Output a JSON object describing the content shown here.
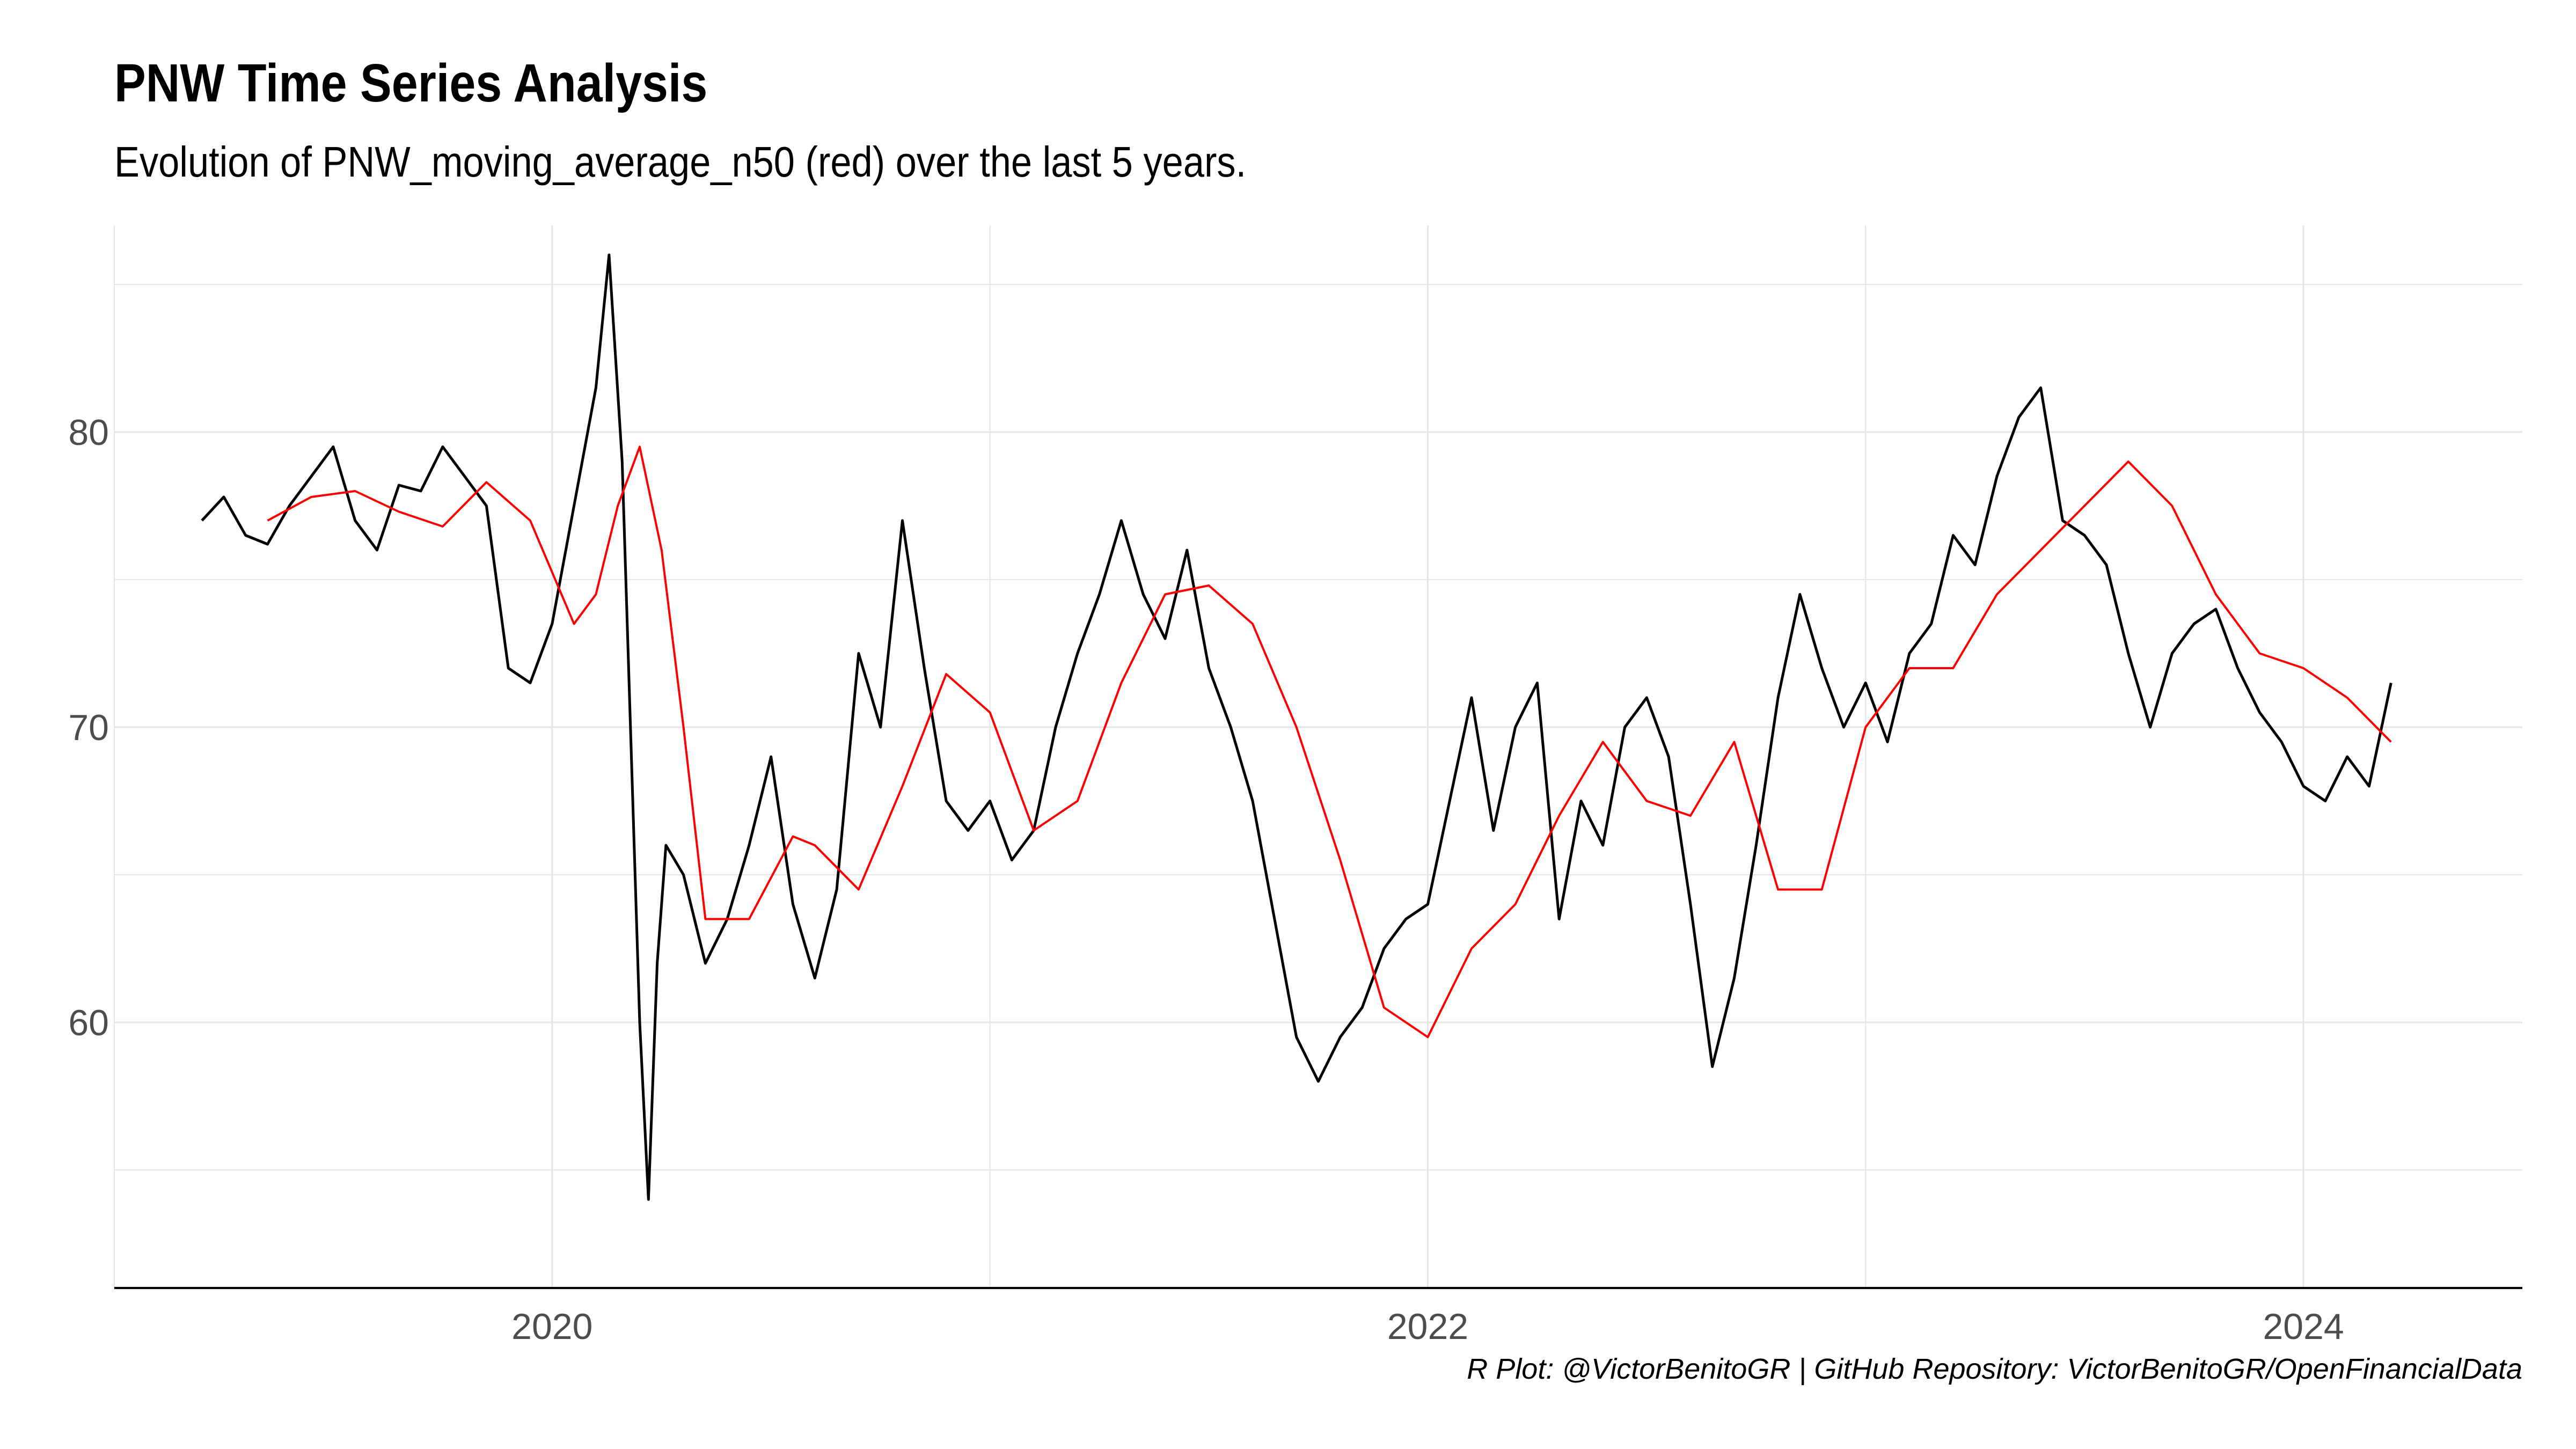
{
  "title": "PNW Time Series Analysis",
  "subtitle": "Evolution of PNW_moving_average_n50  (red) over the last 5 years.",
  "caption": "R Plot: @VictorBenitoGR | GitHub Repository:  VictorBenitoGR/OpenFinancialData",
  "colors": {
    "price": "#000000",
    "moving_average": "#ff0000",
    "grid": "#e5e5e5",
    "axis": "#000000"
  },
  "chart_data": {
    "type": "line",
    "title": "PNW Time Series Analysis",
    "xlabel": "",
    "ylabel": "",
    "xlim": [
      2019.0,
      2024.5
    ],
    "ylim": [
      51,
      87
    ],
    "x_ticks": [
      2020,
      2022,
      2024
    ],
    "y_ticks": [
      60,
      70,
      80
    ],
    "grid": true,
    "legend": "none",
    "series": [
      {
        "color": "#000000",
        "x": [
          2019.2,
          2019.25,
          2019.3,
          2019.35,
          2019.4,
          2019.45,
          2019.5,
          2019.55,
          2019.6,
          2019.65,
          2019.7,
          2019.75,
          2019.8,
          2019.85,
          2019.9,
          2019.95,
          2020.0,
          2020.05,
          2020.1,
          2020.13,
          2020.16,
          2020.2,
          2020.22,
          2020.24,
          2020.26,
          2020.3,
          2020.35,
          2020.4,
          2020.45,
          2020.5,
          2020.55,
          2020.6,
          2020.65,
          2020.7,
          2020.75,
          2020.8,
          2020.85,
          2020.9,
          2020.95,
          2021.0,
          2021.05,
          2021.1,
          2021.15,
          2021.2,
          2021.25,
          2021.3,
          2021.35,
          2021.4,
          2021.45,
          2021.5,
          2021.55,
          2021.6,
          2021.65,
          2021.7,
          2021.75,
          2021.8,
          2021.85,
          2021.9,
          2021.95,
          2022.0,
          2022.05,
          2022.1,
          2022.15,
          2022.2,
          2022.25,
          2022.3,
          2022.35,
          2022.4,
          2022.45,
          2022.5,
          2022.55,
          2022.6,
          2022.65,
          2022.7,
          2022.75,
          2022.8,
          2022.85,
          2022.9,
          2022.95,
          2023.0,
          2023.05,
          2023.1,
          2023.15,
          2023.2,
          2023.25,
          2023.3,
          2023.35,
          2023.4,
          2023.45,
          2023.5,
          2023.55,
          2023.6,
          2023.65,
          2023.7,
          2023.75,
          2023.8,
          2023.85,
          2023.9,
          2023.95,
          2024.0,
          2024.05,
          2024.1,
          2024.15,
          2024.2
        ],
        "values": [
          77.0,
          77.8,
          76.5,
          76.2,
          77.5,
          78.5,
          79.5,
          77.0,
          76.0,
          78.2,
          78.0,
          79.5,
          78.5,
          77.5,
          72.0,
          71.5,
          73.5,
          77.5,
          81.5,
          86.0,
          79.0,
          60.0,
          54.0,
          62.0,
          66.0,
          65.0,
          62.0,
          63.5,
          66.0,
          69.0,
          64.0,
          61.5,
          64.5,
          72.5,
          70.0,
          77.0,
          72.0,
          67.5,
          66.5,
          67.5,
          65.5,
          66.5,
          70.0,
          72.5,
          74.5,
          77.0,
          74.5,
          73.0,
          76.0,
          72.0,
          70.0,
          67.5,
          63.5,
          59.5,
          58.0,
          59.5,
          60.5,
          62.5,
          63.5,
          64.0,
          67.5,
          71.0,
          66.5,
          70.0,
          71.5,
          63.5,
          67.5,
          66.0,
          70.0,
          71.0,
          69.0,
          64.0,
          58.5,
          61.5,
          66.0,
          71.0,
          74.5,
          72.0,
          70.0,
          71.5,
          69.5,
          72.5,
          73.5,
          76.5,
          75.5,
          78.5,
          80.5,
          81.5,
          77.0,
          76.5,
          75.5,
          72.5,
          70.0,
          72.5,
          73.5,
          74.0,
          72.0,
          70.5,
          69.5,
          68.0,
          67.5,
          69.0,
          68.0,
          71.5
        ]
      },
      {
        "color": "#ff0000",
        "x": [
          2019.35,
          2019.45,
          2019.55,
          2019.65,
          2019.75,
          2019.85,
          2019.95,
          2020.05,
          2020.1,
          2020.15,
          2020.2,
          2020.25,
          2020.3,
          2020.35,
          2020.45,
          2020.55,
          2020.6,
          2020.7,
          2020.8,
          2020.9,
          2021.0,
          2021.1,
          2021.2,
          2021.3,
          2021.4,
          2021.5,
          2021.6,
          2021.7,
          2021.8,
          2021.9,
          2022.0,
          2022.1,
          2022.2,
          2022.3,
          2022.4,
          2022.5,
          2022.6,
          2022.7,
          2022.8,
          2022.9,
          2023.0,
          2023.1,
          2023.2,
          2023.3,
          2023.4,
          2023.5,
          2023.6,
          2023.7,
          2023.8,
          2023.9,
          2024.0,
          2024.1,
          2024.2
        ],
        "values": [
          77.0,
          77.8,
          78.0,
          77.3,
          76.8,
          78.3,
          77.0,
          73.5,
          74.5,
          77.5,
          79.5,
          76.0,
          70.0,
          63.5,
          63.5,
          66.3,
          66.0,
          64.5,
          68.0,
          71.8,
          70.5,
          66.5,
          67.5,
          71.5,
          74.5,
          74.8,
          73.5,
          70.0,
          65.5,
          60.5,
          59.5,
          62.5,
          64.0,
          67.0,
          69.5,
          67.5,
          67.0,
          69.5,
          64.5,
          64.5,
          70.0,
          72.0,
          72.0,
          74.5,
          76.0,
          77.5,
          79.0,
          77.5,
          74.5,
          72.5,
          72.0,
          71.0,
          69.5
        ]
      }
    ]
  }
}
